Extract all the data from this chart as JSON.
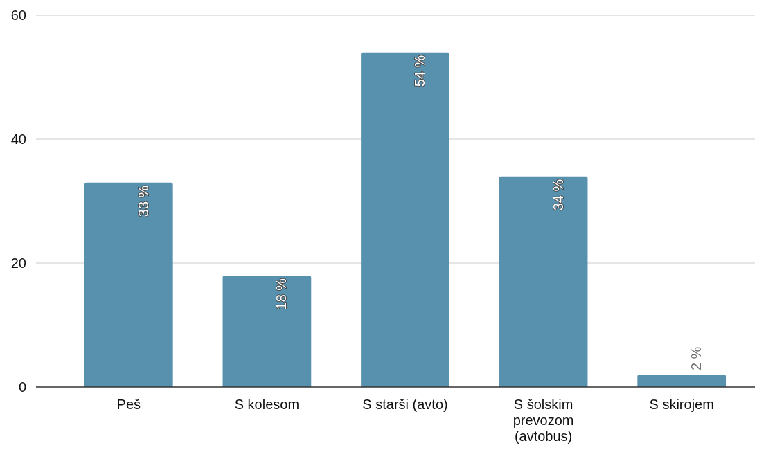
{
  "chart_data": {
    "type": "bar",
    "categories": [
      "Peš",
      "S kolesom",
      "S starši (avto)",
      "S šolskim prevozom (avtobus)",
      "S skirojem"
    ],
    "values": [
      33,
      18,
      54,
      34,
      2
    ],
    "color": "#5891ae",
    "value_labels": [
      "33 %",
      "18 %",
      "54 %",
      "34 %",
      "2 %"
    ],
    "ylim": [
      0,
      60
    ],
    "yticks": [
      0,
      20,
      40,
      60
    ],
    "grid": "y"
  }
}
